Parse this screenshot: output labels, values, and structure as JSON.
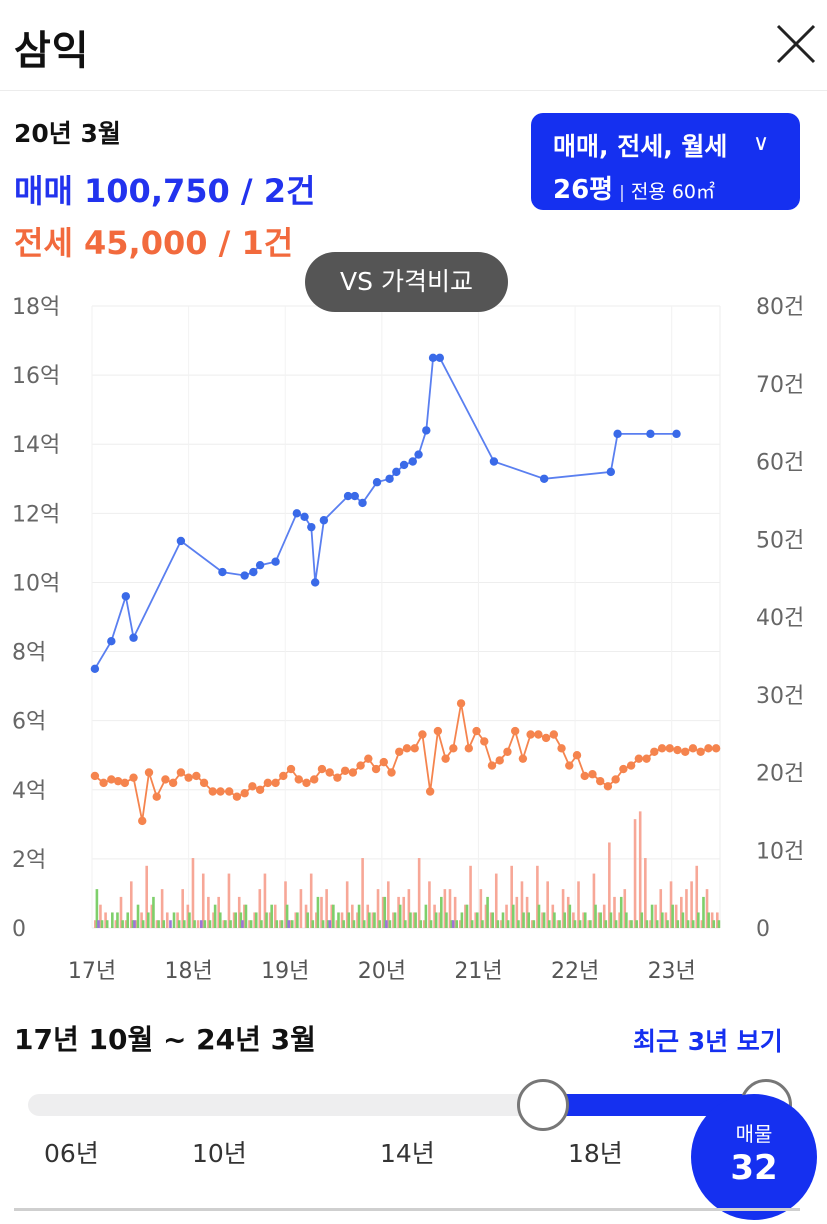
{
  "header": {
    "title": "삼익"
  },
  "selected": {
    "period": "20년 3월",
    "trade": "매매 100,750 / 2건",
    "jeonse": "전세 45,000 / 1건"
  },
  "filter": {
    "types": "매매, 전세, 월세",
    "size": "26평",
    "area": "전용 60㎡"
  },
  "compare_button": "VS 가격비교",
  "range": {
    "label": "17년 10월 ~ 24년 3월",
    "recent_link": "최근 3년 보기"
  },
  "slider": {
    "ticks": [
      "06년",
      "10년",
      "14년",
      "18년"
    ],
    "selected_from": 0.69,
    "selected_to": 1.0
  },
  "listing_badge": {
    "label": "매물",
    "count": "32"
  },
  "colors": {
    "trade": "#5a7ff0",
    "trade_point": "#3a6ae8",
    "jeonse": "#f5844e",
    "bar_trade": "#f7a797",
    "bar_jeonse": "#7ecf6b",
    "bar_monthly": "#9a77d8",
    "accent": "#1530f0"
  },
  "chart_data": {
    "type": "line",
    "x_ticks": [
      "17년",
      "18년",
      "19년",
      "20년",
      "21년",
      "22년",
      "23년"
    ],
    "y_left_ticks": [
      "0",
      "2억",
      "4억",
      "6억",
      "8억",
      "10억",
      "12억",
      "14억",
      "16억",
      "18억"
    ],
    "y_right_ticks": [
      "0",
      "10건",
      "20건",
      "30건",
      "40건",
      "50건",
      "60건",
      "70건",
      "80건"
    ],
    "xlim": [
      2017.0,
      2023.5
    ],
    "ylim_left": [
      0,
      18
    ],
    "ylim_right": [
      0,
      80
    ],
    "grid": true,
    "series": [
      {
        "x": [
          2017.03,
          2017.2,
          2017.35,
          2017.43,
          2017.92,
          2018.35,
          2018.58,
          2018.67,
          2018.74,
          2018.9,
          2019.12,
          2019.2,
          2019.27,
          2019.31,
          2019.4,
          2019.65,
          2019.72,
          2019.8,
          2019.95,
          2020.08,
          2020.15,
          2020.23,
          2020.32,
          2020.38,
          2020.46,
          2020.53,
          2020.6,
          2021.16,
          2021.68,
          2022.37,
          2022.44,
          2022.78,
          2023.05
        ],
        "values": [
          7.5,
          8.3,
          9.6,
          8.4,
          11.2,
          10.3,
          10.2,
          10.3,
          10.5,
          10.6,
          12.0,
          11.9,
          11.6,
          10.0,
          11.8,
          12.5,
          12.5,
          12.3,
          12.9,
          13.0,
          13.2,
          13.4,
          13.5,
          13.7,
          14.4,
          16.5,
          16.5,
          13.5,
          13.0,
          13.2,
          14.3,
          14.3,
          14.3
        ]
      },
      {
        "x": [
          2017.03,
          2017.12,
          2017.2,
          2017.27,
          2017.34,
          2017.43,
          2017.52,
          2017.59,
          2017.67,
          2017.76,
          2017.84,
          2017.92,
          2018.0,
          2018.08,
          2018.16,
          2018.25,
          2018.33,
          2018.42,
          2018.5,
          2018.58,
          2018.66,
          2018.74,
          2018.82,
          2018.9,
          2018.98,
          2019.06,
          2019.14,
          2019.22,
          2019.3,
          2019.38,
          2019.46,
          2019.54,
          2019.62,
          2019.7,
          2019.78,
          2019.86,
          2019.94,
          2020.02,
          2020.1,
          2020.18,
          2020.26,
          2020.34,
          2020.42,
          2020.5,
          2020.58,
          2020.66,
          2020.74,
          2020.82,
          2020.9,
          2020.98,
          2021.06,
          2021.14,
          2021.22,
          2021.3,
          2021.38,
          2021.46,
          2021.54,
          2021.62,
          2021.7,
          2021.78,
          2021.86,
          2021.94,
          2022.02,
          2022.1,
          2022.18,
          2022.26,
          2022.34,
          2022.42,
          2022.5,
          2022.58,
          2022.66,
          2022.74,
          2022.82,
          2022.9,
          2022.98,
          2023.06,
          2023.14,
          2023.22,
          2023.3,
          2023.38,
          2023.46
        ],
        "values": [
          4.4,
          4.2,
          4.3,
          4.25,
          4.2,
          4.35,
          3.1,
          4.5,
          3.8,
          4.3,
          4.2,
          4.5,
          4.35,
          4.4,
          4.2,
          3.95,
          3.95,
          3.95,
          3.8,
          3.9,
          4.1,
          4.0,
          4.2,
          4.2,
          4.4,
          4.6,
          4.3,
          4.2,
          4.3,
          4.6,
          4.5,
          4.35,
          4.55,
          4.5,
          4.7,
          4.9,
          4.6,
          4.8,
          4.5,
          5.1,
          5.2,
          5.2,
          5.6,
          3.95,
          5.7,
          4.9,
          5.2,
          6.5,
          5.2,
          5.7,
          5.4,
          4.7,
          4.85,
          5.1,
          5.7,
          4.9,
          5.6,
          5.6,
          5.5,
          5.6,
          5.2,
          4.7,
          5.0,
          4.4,
          4.45,
          4.25,
          4.1,
          4.3,
          4.6,
          4.7,
          4.9,
          4.9,
          5.1,
          5.2,
          5.2,
          5.15,
          5.1,
          5.2,
          5.1,
          5.2,
          5.2
        ]
      }
    ],
    "volume_series": [
      {
        "values": [
          1,
          3,
          2,
          0,
          1,
          4,
          1,
          6,
          1,
          2,
          8,
          3,
          1,
          5,
          2,
          0,
          2,
          5,
          3,
          9,
          1,
          7,
          4,
          2,
          4,
          1,
          7,
          2,
          4,
          3,
          1,
          2,
          5,
          7,
          2,
          3,
          1,
          6,
          1,
          2,
          5,
          3,
          7,
          2,
          4,
          5,
          3,
          1,
          2,
          6,
          3,
          2,
          9,
          3,
          2,
          5,
          4,
          6,
          2,
          4,
          4,
          5,
          2,
          9,
          1,
          6,
          3,
          2,
          5,
          5,
          4,
          1,
          3,
          8,
          2,
          5,
          3,
          2,
          7,
          1,
          3,
          8,
          4,
          6,
          4,
          1,
          8,
          2,
          6,
          3,
          1,
          5,
          4,
          2,
          6,
          2,
          1,
          7,
          2,
          3,
          11,
          4,
          2,
          5,
          1,
          14,
          15,
          9,
          1,
          3,
          5,
          2,
          6,
          3,
          4,
          5,
          6,
          8,
          1,
          5,
          2,
          2
        ]
      },
      {
        "values": [
          5,
          1,
          1,
          2,
          2,
          1,
          2,
          1,
          3,
          1,
          2,
          4,
          1,
          1,
          0,
          2,
          1,
          1,
          2,
          1,
          0,
          1,
          1,
          3,
          2,
          1,
          1,
          2,
          2,
          3,
          1,
          2,
          1,
          2,
          3,
          1,
          1,
          3,
          1,
          2,
          0,
          2,
          1,
          4,
          1,
          1,
          3,
          2,
          1,
          2,
          1,
          3,
          1,
          2,
          2,
          1,
          4,
          1,
          2,
          3,
          1,
          2,
          2,
          1,
          3,
          1,
          2,
          4,
          2,
          1,
          1,
          2,
          3,
          1,
          2,
          1,
          4,
          2,
          1,
          2,
          1,
          3,
          1,
          2,
          2,
          1,
          3,
          2,
          1,
          2,
          1,
          2,
          3,
          1,
          1,
          2,
          1,
          3,
          2,
          1,
          2,
          1,
          4,
          2,
          1,
          1,
          2,
          1,
          3,
          1,
          2,
          1,
          3,
          1,
          2,
          1,
          1,
          2,
          4,
          2,
          1,
          1
        ]
      },
      {
        "values": [
          1,
          0,
          0,
          0,
          0,
          0,
          0,
          1,
          0,
          0,
          0,
          0,
          0,
          0,
          1,
          0,
          0,
          0,
          0,
          0,
          1,
          0,
          0,
          0,
          0,
          0,
          0,
          0,
          1,
          0,
          0,
          0,
          0,
          0,
          0,
          0,
          0,
          1,
          0,
          0,
          0,
          0,
          0,
          0,
          0,
          1,
          0,
          0,
          0,
          0,
          0,
          0,
          0,
          0,
          0,
          0,
          1,
          0,
          0,
          0,
          0,
          0,
          0,
          0,
          0,
          0,
          0,
          0,
          0,
          1,
          0,
          0,
          0,
          0,
          0,
          0,
          0,
          0,
          0,
          0,
          0,
          0,
          0,
          0,
          0,
          0,
          0,
          0,
          0,
          0,
          0,
          0,
          0,
          0,
          0,
          0,
          0,
          0,
          0,
          0,
          0,
          0,
          0,
          0,
          0,
          0,
          0,
          0,
          0,
          0,
          0,
          0,
          0,
          0,
          0,
          0,
          0,
          0,
          0,
          0,
          0,
          0
        ]
      }
    ]
  }
}
